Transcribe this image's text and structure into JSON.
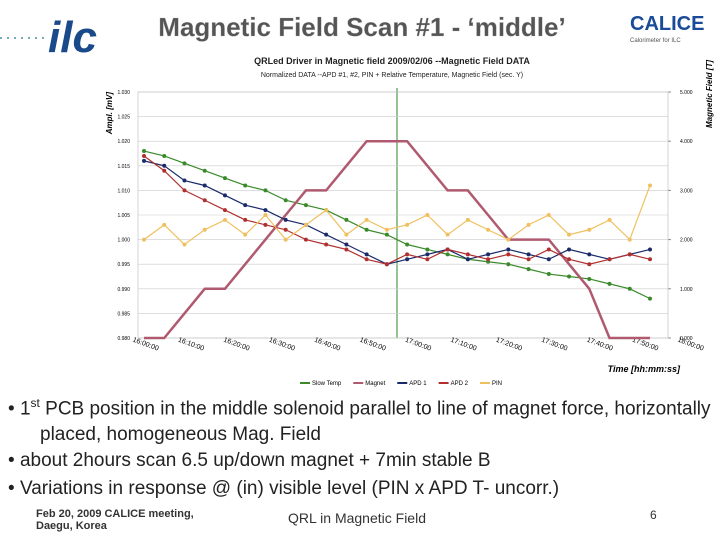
{
  "header": {
    "title": "Magnetic Field Scan #1 - ‘middle’",
    "logo_left": "ilc",
    "logo_right": "CALICE",
    "logo_right_sub": "Calorimeter for ILC"
  },
  "chart_data": {
    "type": "line",
    "title": "QRLed Driver in Magnetic field 2009/02/06 --Magnetic Field DATA",
    "subtitle": "Normalized DATA --APD #1, #2, PIN + Relative Temperature, Magnetic Field (sec. Y)",
    "ylabel": "Ampl. [mV]",
    "y2label": "Magnetic Field [T]",
    "xlabel": "Time [hh:mm:ss]",
    "xticks": [
      "16:00:00",
      "16:10:00",
      "16:20:00",
      "16:30:00",
      "16:40:00",
      "16:50:00",
      "17:00:00",
      "17:10:00",
      "17:20:00",
      "17:30:00",
      "17:40:00",
      "17:50:00",
      "18:00:00"
    ],
    "ylim": [
      0.98,
      1.03
    ],
    "yticks": [
      {
        "value": 1.03,
        "label": "1.030"
      },
      {
        "value": 1.025,
        "label": "1.025"
      },
      {
        "value": 1.02,
        "label": "1.020"
      },
      {
        "value": 1.015,
        "label": "1.015"
      },
      {
        "value": 1.01,
        "label": "1.010"
      },
      {
        "value": 1.005,
        "label": "1.005"
      },
      {
        "value": 1,
        "label": "1.000"
      },
      {
        "value": 0.995,
        "label": "0.995"
      },
      {
        "value": 0.99,
        "label": "0.990"
      },
      {
        "value": 0.985,
        "label": "0.985"
      },
      {
        "value": 0.98,
        "label": "0.980"
      }
    ],
    "y2lim": [
      0,
      5
    ],
    "y2ticks": [
      {
        "value": 5,
        "label": "5.000"
      },
      {
        "value": 4,
        "label": "4.000"
      },
      {
        "value": 3,
        "label": "3.000"
      },
      {
        "value": 2,
        "label": "2.000"
      },
      {
        "value": 1,
        "label": "1.000"
      },
      {
        "value": 0,
        "label": "0.000"
      }
    ],
    "series": [
      {
        "name": "Slow Temp",
        "color": "#3a8a2a",
        "values": [
          1.018,
          1.017,
          1.0155,
          1.014,
          1.0125,
          1.011,
          1.01,
          1.008,
          1.007,
          1.006,
          1.004,
          1.002,
          1.001,
          0.999,
          0.998,
          0.997,
          0.996,
          0.9955,
          0.995,
          0.994,
          0.993,
          0.9925,
          0.992,
          0.991,
          0.99,
          0.988
        ]
      },
      {
        "name": "Magnet",
        "color": "#b05a70",
        "axis": "y2",
        "values": [
          0,
          0,
          0.5,
          1,
          1,
          1.5,
          2,
          2.5,
          3,
          3,
          3.5,
          4,
          4,
          4,
          3.5,
          3,
          3,
          2.5,
          2,
          2,
          2,
          1.5,
          1,
          0,
          0,
          0
        ]
      },
      {
        "name": "APD 1",
        "color": "#1a2a6a",
        "values": [
          1.016,
          1.015,
          1.012,
          1.011,
          1.009,
          1.007,
          1.006,
          1.004,
          1.003,
          1.001,
          0.999,
          0.997,
          0.995,
          0.996,
          0.997,
          0.998,
          0.996,
          0.997,
          0.998,
          0.997,
          0.996,
          0.998,
          0.997,
          0.996,
          0.997,
          0.998
        ]
      },
      {
        "name": "APD 2",
        "color": "#b03030",
        "values": [
          1.017,
          1.014,
          1.01,
          1.008,
          1.006,
          1.004,
          1.003,
          1.002,
          1,
          0.999,
          0.998,
          0.996,
          0.995,
          0.997,
          0.996,
          0.998,
          0.997,
          0.996,
          0.997,
          0.996,
          0.998,
          0.996,
          0.995,
          0.996,
          0.997,
          0.996
        ]
      },
      {
        "name": "PIN",
        "color": "#f0c060",
        "values": [
          1,
          1.003,
          0.999,
          1.002,
          1.004,
          1.001,
          1.005,
          1,
          1.003,
          1.006,
          1.001,
          1.004,
          1.002,
          1.003,
          1.005,
          1.001,
          1.004,
          1.002,
          1,
          1.003,
          1.005,
          1.001,
          1.002,
          1.004,
          1,
          1.011
        ]
      }
    ]
  },
  "bullets": [
    {
      "pre": "1",
      "sup": "st",
      "text": "PCB position in the middle solenoid parallel to line of magnet force, horizontally placed, homogeneous Mag. Field"
    },
    {
      "text": "about 2hours scan 6.5 up/down magnet + 7min stable B"
    },
    {
      "text": "Variations in response @ (in) visible level (PIN x APD T- uncorr.)"
    }
  ],
  "footer": {
    "left_1": "Feb 20, 2009 CALICE meeting,",
    "left_2": "Daegu, Korea",
    "center": "QRL in Magnetic Field",
    "page": "6"
  }
}
